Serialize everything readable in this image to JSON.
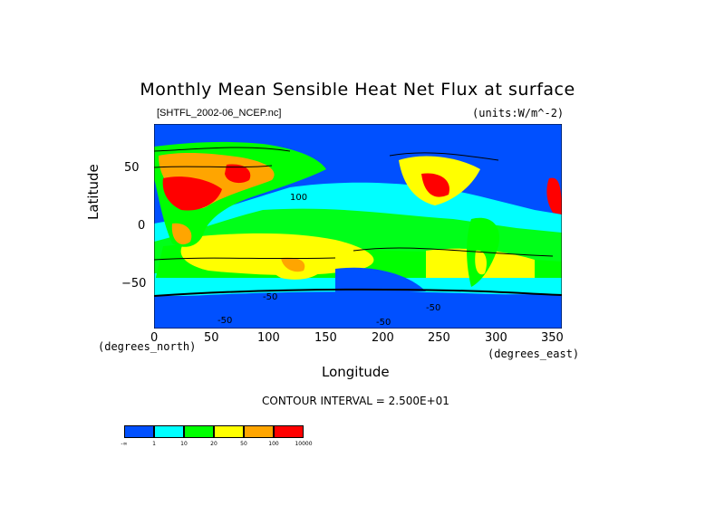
{
  "title": "Monthly Mean Sensible Heat Net Flux at surface",
  "source": "[SHTFL_2002-06_NCEP.nc]",
  "units": "(units:W/m^-2)",
  "y_axis": {
    "label": "Latitude",
    "ticks": [
      "50",
      "0",
      "−50"
    ],
    "unit_label": "(degrees_north)"
  },
  "x_axis": {
    "label": "Longitude",
    "ticks": [
      "0",
      "50",
      "100",
      "150",
      "200",
      "250",
      "300",
      "350"
    ],
    "unit_label": "(degrees_east)"
  },
  "contour_interval": "CONTOUR INTERVAL = 2.500E+01",
  "contour_labels": [
    "100",
    "-50",
    "-50",
    "-50",
    "-50"
  ],
  "legend": {
    "colors": [
      "#0050ff",
      "#00ffff",
      "#00ff00",
      "#ffff00",
      "#ffa500",
      "#ff0000"
    ],
    "labels": [
      "-∞",
      "1",
      "10",
      "20",
      "50",
      "100",
      "10000"
    ]
  },
  "colors": {
    "ocean_blue": "#0050ff",
    "cyan": "#00ffff",
    "green": "#00ff00",
    "yellow": "#ffff00",
    "orange": "#ffa500",
    "red": "#ff0000"
  }
}
